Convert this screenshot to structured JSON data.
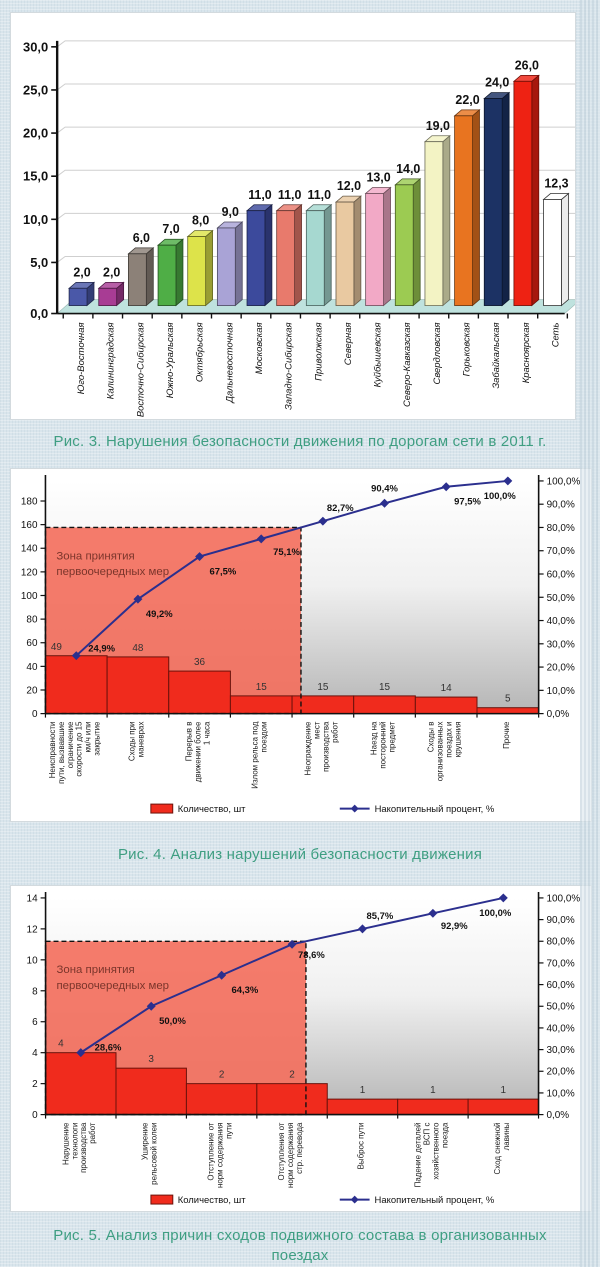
{
  "page": {
    "background_color": "#d9e5ec",
    "caption_color": "#3f9e82"
  },
  "chart_data": [
    {
      "id": "fig3",
      "type": "bar",
      "style": "3d-column",
      "caption": "Рис. 3. Нарушения безопасности движения по дорогам сети в 2011 г.",
      "categories": [
        "Юго-Восточная",
        "Калининградская",
        "Восточно-Сибирская",
        "Южно-Уральская",
        "Октябрьская",
        "Дальневосточная",
        "Московская",
        "Западно-Сибирская",
        "Приволжская",
        "Северная",
        "Куйбышевская",
        "Северо-Кавказская",
        "Свердловская",
        "Горьковская",
        "Забайкальская",
        "Красноярская",
        "Сеть"
      ],
      "values": [
        2.0,
        2.0,
        6.0,
        7.0,
        8.0,
        9.0,
        11.0,
        11.0,
        11.0,
        12.0,
        13.0,
        14.0,
        19.0,
        22.0,
        24.0,
        26.0,
        12.3
      ],
      "value_labels": [
        "2,0",
        "2,0",
        "6,0",
        "7,0",
        "8,0",
        "9,0",
        "11,0",
        "11,0",
        "11,0",
        "12,0",
        "13,0",
        "14,0",
        "19,0",
        "22,0",
        "24,0",
        "26,0",
        "12,3"
      ],
      "bar_colors": [
        "#4a58a8",
        "#a83c94",
        "#8c8178",
        "#4fae46",
        "#dde34a",
        "#a9a3d6",
        "#3c4a9c",
        "#e87a6c",
        "#a6d8d0",
        "#e9c9a1",
        "#f2a9c6",
        "#9ccb52",
        "#f3f3c4",
        "#e87420",
        "#1c3264",
        "#ee2213",
        "#ffffff"
      ],
      "ylim": [
        0,
        30
      ],
      "yticks": [
        0,
        5,
        10,
        15,
        20,
        25,
        30
      ],
      "ytick_labels": [
        "0,0",
        "5,0",
        "10,0",
        "15,0",
        "20,0",
        "25,0",
        "30,0"
      ],
      "grid": true,
      "floor_color": "#bfe2de",
      "xlabel": "",
      "ylabel": ""
    },
    {
      "id": "fig4",
      "type": "pareto",
      "caption": "Рис. 4. Анализ нарушений безопасности движения",
      "categories": [
        "Неисправности пути, вызвавшие ограничение скорости до 15 км/ч или закрытие",
        "Сходы при маневрах",
        "Перерыв в движении более 1 часа",
        "Излом рельса под поездом",
        "Неограждение мест производства работ",
        "Наезд на посторонний предмет",
        "Сходы в организованных поездах и крушения",
        "Прочие"
      ],
      "category_lines": [
        [
          "Неисправности",
          "пути, вызвавшие",
          "ограничение",
          "скорости до 15",
          "км/ч или",
          "закрытие"
        ],
        [
          "Сходы при",
          "маневрах"
        ],
        [
          "Перерыв в",
          "движении более",
          "1 часа"
        ],
        [
          "Излом рельса  под",
          "поездом"
        ],
        [
          "Неограждение",
          "мест",
          "производства",
          "работ"
        ],
        [
          "Наезд на",
          "посторонний",
          "предмет"
        ],
        [
          "Сходы в",
          "организованных",
          "поездах и",
          "крушения"
        ],
        [
          "Прочие"
        ]
      ],
      "values": [
        49,
        48,
        36,
        15,
        15,
        15,
        14,
        5
      ],
      "cumulative_pct": [
        24.9,
        49.2,
        67.5,
        75.1,
        82.7,
        90.4,
        97.5,
        100.0
      ],
      "cumulative_labels": [
        "24,9%",
        "49,2%",
        "67,5%",
        "75,1%",
        "82,7%",
        "90,4%",
        "97,5%",
        "100,0%"
      ],
      "left_axis": {
        "max": 197,
        "ticks": [
          0,
          20,
          40,
          60,
          80,
          100,
          120,
          140,
          160,
          180
        ]
      },
      "right_axis": {
        "ticks": [
          0,
          10,
          20,
          30,
          40,
          50,
          60,
          70,
          80,
          90,
          100
        ],
        "tick_labels": [
          "0,0%",
          "10,0%",
          "20,0%",
          "30,0%",
          "40,0%",
          "50,0%",
          "60,0%",
          "70,0%",
          "80,0%",
          "90,0%",
          "100,0%"
        ]
      },
      "zone": {
        "label": "Зона принятия первоочередных мер",
        "label_lines": [
          "Зона принятия",
          "первоочередных мер"
        ],
        "pct": 80
      },
      "legend": {
        "bars": "Количество, шт",
        "line": "Накопительный процент, %"
      },
      "colors": {
        "bar": "#f02b1d",
        "bar_stroke": "#6b120b",
        "line": "#2b2f8e",
        "zone": "#f3705e",
        "zone_text": "#7b352b"
      },
      "pct_label_offsets": [
        [
          12,
          -4,
          "start"
        ],
        [
          8,
          18,
          "start"
        ],
        [
          10,
          18,
          "start"
        ],
        [
          12,
          16,
          "start"
        ],
        [
          4,
          -10,
          "start"
        ],
        [
          0,
          -12,
          "middle"
        ],
        [
          8,
          18,
          "start"
        ],
        [
          8,
          18,
          "end"
        ]
      ]
    },
    {
      "id": "fig5",
      "type": "pareto",
      "caption": "Рис. 5. Анализ причин сходов подвижного состава в организованных поездах",
      "categories": [
        "Нарушение технологи производства работ",
        "Уширение рельсовой колеи",
        "Отступление от норм содержания пути",
        "Отступления от норм содержания стр. перевода",
        "Выброс пути",
        "Падение деталей ВСП с хозяйственного поезда",
        "Сход снежной лавины"
      ],
      "category_lines": [
        [
          "Нарушение",
          "технологи",
          "производства",
          "работ"
        ],
        [
          "Уширение",
          "рельсовой колеи"
        ],
        [
          "Отступление от",
          "норм содержания",
          "пути"
        ],
        [
          "Отступления от",
          "норм содержания",
          "стр. перевода"
        ],
        [
          "Выброс пути"
        ],
        [
          "Падение деталей",
          "ВСП с",
          "хозяйственного",
          "поезда"
        ],
        [
          "Сход снежной",
          "лавины"
        ]
      ],
      "values": [
        4,
        3,
        2,
        2,
        1,
        1,
        1
      ],
      "cumulative_pct": [
        28.6,
        50.0,
        64.3,
        78.6,
        85.7,
        92.9,
        100.0
      ],
      "cumulative_labels": [
        "28,6%",
        "50,0%",
        "64,3%",
        "78,6%",
        "85,7%",
        "92,9%",
        "100,0%"
      ],
      "left_axis": {
        "max": 14,
        "ticks": [
          0,
          2,
          4,
          6,
          8,
          10,
          12,
          14
        ]
      },
      "right_axis": {
        "ticks": [
          0,
          10,
          20,
          30,
          40,
          50,
          60,
          70,
          80,
          90,
          100
        ],
        "tick_labels": [
          "0,0%",
          "10,0%",
          "20,0%",
          "30,0%",
          "40,0%",
          "50,0%",
          "60,0%",
          "70,0%",
          "80,0%",
          "90,0%",
          "100,0%"
        ]
      },
      "zone": {
        "label": "Зона принятия первоочередных мер",
        "label_lines": [
          "Зона принятия",
          "первоочередных мер"
        ],
        "pct": 80
      },
      "legend": {
        "bars": "Количество, шт",
        "line": "Накопительный процент, %"
      },
      "colors": {
        "bar": "#f02b1d",
        "bar_stroke": "#6b120b",
        "line": "#2b2f8e",
        "zone": "#f3705e",
        "zone_text": "#7b352b"
      },
      "pct_label_offsets": [
        [
          14,
          -2,
          "start"
        ],
        [
          8,
          18,
          "start"
        ],
        [
          10,
          18,
          "start"
        ],
        [
          6,
          14,
          "start"
        ],
        [
          4,
          -10,
          "start"
        ],
        [
          8,
          16,
          "start"
        ],
        [
          8,
          18,
          "end"
        ]
      ]
    }
  ]
}
